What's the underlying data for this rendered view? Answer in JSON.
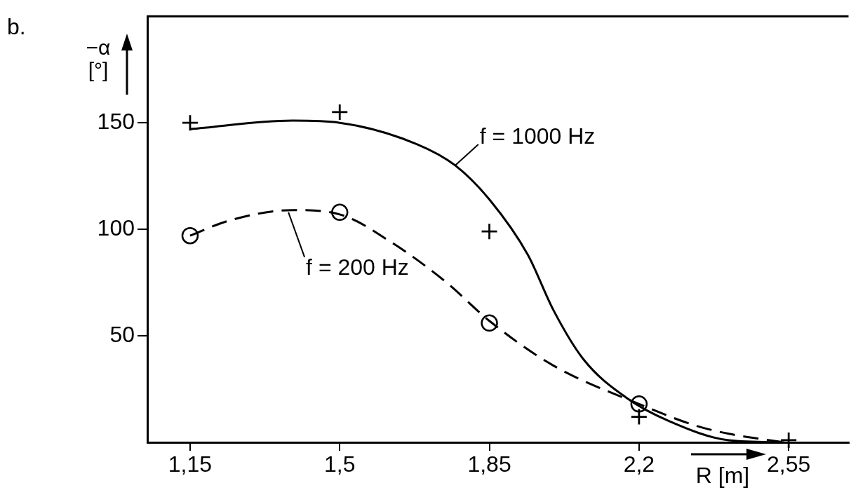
{
  "chart_data": {
    "type": "line",
    "xlabel": "R [m]",
    "ylabel": "−α [°]",
    "annotations": [
      "b.",
      {
        "text": "f = 1000 Hz",
        "x": 1.77,
        "y": 130
      },
      {
        "text": "f = 200 Hz",
        "x": 1.38,
        "y": 108
      }
    ],
    "xlim": [
      1.05,
      2.69
    ],
    "xticks": [
      {
        "value": 1.15,
        "label": "1,15"
      },
      {
        "value": 1.5,
        "label": "1,5"
      },
      {
        "value": 1.85,
        "label": "1,85"
      },
      {
        "value": 2.2,
        "label": "2,2"
      },
      {
        "value": 2.55,
        "label": "2,55"
      }
    ],
    "ylim": [
      0,
      200
    ],
    "yticks": [
      50,
      100,
      150
    ],
    "grid": false,
    "legend": false,
    "series": [
      {
        "color": "#000000",
        "line_style": "solid",
        "marker": "none",
        "x": [
          1.15,
          1.39,
          1.5,
          1.68,
          1.77,
          1.85,
          1.94,
          2.0,
          2.07,
          2.17,
          2.27,
          2.41,
          2.54
        ],
        "values": [
          147,
          151,
          150,
          140,
          130,
          114,
          88,
          62,
          39,
          21,
          10,
          1,
          0
        ]
      },
      {
        "color": "#000000",
        "line_style": "dashed",
        "marker": "none",
        "x": [
          1.15,
          1.24,
          1.39,
          1.5,
          1.62,
          1.75,
          1.85,
          2.0,
          2.2,
          2.33,
          2.41,
          2.54
        ],
        "values": [
          97,
          104,
          109,
          107,
          94,
          75,
          57,
          36,
          18,
          8,
          4,
          0
        ]
      },
      {
        "type": "scatter",
        "color": "#000000",
        "marker": "cross",
        "x": [
          1.15,
          1.5,
          1.85,
          2.2,
          2.55
        ],
        "values": [
          150,
          155,
          99,
          12,
          1
        ]
      },
      {
        "type": "scatter",
        "color": "#000000",
        "marker": "circle",
        "x": [
          1.15,
          1.5,
          1.85,
          2.2
        ],
        "values": [
          97,
          108,
          56,
          18
        ]
      }
    ]
  }
}
